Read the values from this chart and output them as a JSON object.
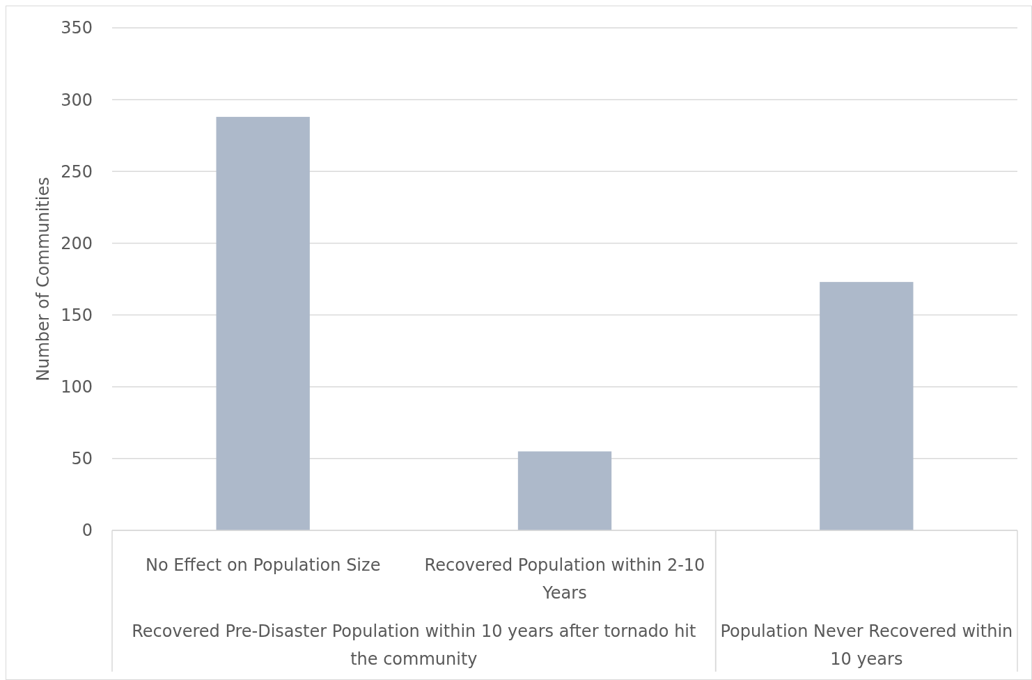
{
  "chart_data": {
    "type": "bar",
    "ylabel": "Number of Communities",
    "categories": [
      "No Effect on Population Size",
      "Recovered Population within 2-10 Years",
      null
    ],
    "values": [
      288,
      55,
      173
    ],
    "color": "#adb9ca",
    "ylim": [
      0,
      350
    ],
    "yticks": [
      0,
      50,
      100,
      150,
      200,
      250,
      300,
      350
    ],
    "grid": "y",
    "annotations": [
      "Recovered Pre-Disaster Population within 10 years after tornado hit the community",
      "Population Never Recovered within 10 years"
    ]
  }
}
